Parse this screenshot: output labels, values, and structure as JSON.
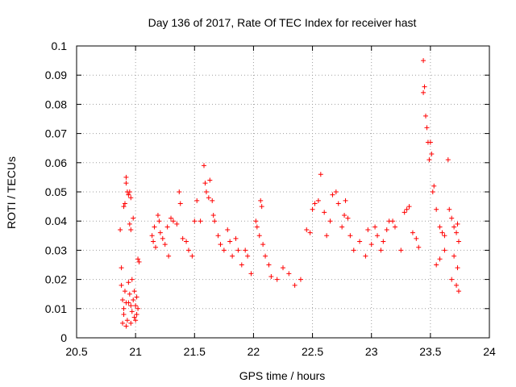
{
  "chart_data": {
    "type": "scatter",
    "title": "Day 136 of 2017, Rate Of TEC Index for receiver hast",
    "xlabel": "GPS time / hours",
    "ylabel": "ROTI / TECUs",
    "xlim": [
      20.5,
      24
    ],
    "ylim": [
      0,
      0.1
    ],
    "xticks": [
      "20.5",
      "21",
      "21.5",
      "22",
      "22.5",
      "23",
      "23.5",
      "24"
    ],
    "yticks": [
      "0",
      "0.01",
      "0.02",
      "0.03",
      "0.04",
      "0.05",
      "0.06",
      "0.07",
      "0.08",
      "0.09",
      "0.1"
    ],
    "grid": true,
    "marker": "+",
    "series": [
      {
        "color": "#ff0000",
        "points": [
          [
            20.87,
            0.037
          ],
          [
            20.88,
            0.024
          ],
          [
            20.9,
            0.045
          ],
          [
            20.91,
            0.046
          ],
          [
            20.92,
            0.055
          ],
          [
            20.92,
            0.053
          ],
          [
            20.93,
            0.05
          ],
          [
            20.94,
            0.049
          ],
          [
            20.95,
            0.05
          ],
          [
            20.96,
            0.048
          ],
          [
            20.95,
            0.039
          ],
          [
            20.96,
            0.037
          ],
          [
            20.98,
            0.041
          ],
          [
            21.02,
            0.027
          ],
          [
            21.03,
            0.026
          ],
          [
            20.88,
            0.018
          ],
          [
            20.89,
            0.013
          ],
          [
            20.9,
            0.01
          ],
          [
            20.9,
            0.008
          ],
          [
            20.91,
            0.016
          ],
          [
            20.92,
            0.012
          ],
          [
            20.93,
            0.006
          ],
          [
            20.94,
            0.019
          ],
          [
            20.95,
            0.015
          ],
          [
            20.96,
            0.011
          ],
          [
            20.97,
            0.009
          ],
          [
            20.97,
            0.02
          ],
          [
            20.98,
            0.013
          ],
          [
            20.99,
            0.007
          ],
          [
            21.0,
            0.011
          ],
          [
            21.01,
            0.014
          ],
          [
            21.01,
            0.008
          ],
          [
            21.02,
            0.01
          ],
          [
            20.89,
            0.005
          ],
          [
            20.92,
            0.004
          ],
          [
            20.96,
            0.005
          ],
          [
            21.0,
            0.006
          ],
          [
            20.94,
            0.012
          ],
          [
            20.99,
            0.016
          ],
          [
            21.14,
            0.035
          ],
          [
            21.15,
            0.033
          ],
          [
            21.16,
            0.038
          ],
          [
            21.17,
            0.031
          ],
          [
            21.19,
            0.042
          ],
          [
            21.2,
            0.04
          ],
          [
            21.21,
            0.036
          ],
          [
            21.23,
            0.034
          ],
          [
            21.25,
            0.032
          ],
          [
            21.27,
            0.038
          ],
          [
            21.28,
            0.028
          ],
          [
            21.3,
            0.041
          ],
          [
            21.32,
            0.04
          ],
          [
            21.35,
            0.039
          ],
          [
            21.37,
            0.05
          ],
          [
            21.38,
            0.046
          ],
          [
            21.4,
            0.034
          ],
          [
            21.43,
            0.033
          ],
          [
            21.45,
            0.03
          ],
          [
            21.48,
            0.028
          ],
          [
            21.5,
            0.04
          ],
          [
            21.52,
            0.047
          ],
          [
            21.55,
            0.04
          ],
          [
            21.58,
            0.059
          ],
          [
            21.59,
            0.053
          ],
          [
            21.6,
            0.05
          ],
          [
            21.62,
            0.048
          ],
          [
            21.63,
            0.054
          ],
          [
            21.65,
            0.047
          ],
          [
            21.66,
            0.042
          ],
          [
            21.67,
            0.04
          ],
          [
            21.7,
            0.035
          ],
          [
            21.72,
            0.032
          ],
          [
            21.75,
            0.03
          ],
          [
            21.78,
            0.037
          ],
          [
            21.8,
            0.033
          ],
          [
            21.82,
            0.028
          ],
          [
            21.85,
            0.034
          ],
          [
            21.87,
            0.03
          ],
          [
            21.9,
            0.025
          ],
          [
            21.93,
            0.03
          ],
          [
            21.95,
            0.028
          ],
          [
            21.98,
            0.022
          ],
          [
            22.02,
            0.04
          ],
          [
            22.03,
            0.038
          ],
          [
            22.05,
            0.035
          ],
          [
            22.06,
            0.047
          ],
          [
            22.07,
            0.045
          ],
          [
            22.08,
            0.032
          ],
          [
            22.1,
            0.028
          ],
          [
            22.13,
            0.025
          ],
          [
            22.15,
            0.021
          ],
          [
            22.2,
            0.02
          ],
          [
            22.25,
            0.024
          ],
          [
            22.3,
            0.022
          ],
          [
            22.35,
            0.018
          ],
          [
            22.4,
            0.02
          ],
          [
            22.45,
            0.037
          ],
          [
            22.48,
            0.036
          ],
          [
            22.5,
            0.044
          ],
          [
            22.52,
            0.046
          ],
          [
            22.55,
            0.047
          ],
          [
            22.57,
            0.056
          ],
          [
            22.6,
            0.043
          ],
          [
            22.62,
            0.035
          ],
          [
            22.65,
            0.04
          ],
          [
            22.67,
            0.049
          ],
          [
            22.7,
            0.05
          ],
          [
            22.72,
            0.046
          ],
          [
            22.75,
            0.038
          ],
          [
            22.77,
            0.042
          ],
          [
            22.78,
            0.047
          ],
          [
            22.8,
            0.041
          ],
          [
            22.82,
            0.035
          ],
          [
            22.85,
            0.03
          ],
          [
            22.9,
            0.033
          ],
          [
            22.95,
            0.028
          ],
          [
            22.97,
            0.037
          ],
          [
            23.0,
            0.032
          ],
          [
            23.03,
            0.038
          ],
          [
            23.05,
            0.035
          ],
          [
            23.08,
            0.03
          ],
          [
            23.1,
            0.033
          ],
          [
            23.13,
            0.037
          ],
          [
            23.15,
            0.04
          ],
          [
            23.18,
            0.04
          ],
          [
            23.2,
            0.038
          ],
          [
            23.25,
            0.03
          ],
          [
            23.28,
            0.043
          ],
          [
            23.3,
            0.044
          ],
          [
            23.32,
            0.045
          ],
          [
            23.35,
            0.036
          ],
          [
            23.38,
            0.034
          ],
          [
            23.4,
            0.031
          ],
          [
            23.44,
            0.095
          ],
          [
            23.45,
            0.086
          ],
          [
            23.44,
            0.084
          ],
          [
            23.46,
            0.076
          ],
          [
            23.47,
            0.072
          ],
          [
            23.48,
            0.067
          ],
          [
            23.49,
            0.061
          ],
          [
            23.5,
            0.067
          ],
          [
            23.51,
            0.063
          ],
          [
            23.52,
            0.05
          ],
          [
            23.53,
            0.052
          ],
          [
            23.55,
            0.044
          ],
          [
            23.58,
            0.038
          ],
          [
            23.6,
            0.036
          ],
          [
            23.62,
            0.035
          ],
          [
            23.65,
            0.061
          ],
          [
            23.66,
            0.044
          ],
          [
            23.68,
            0.041
          ],
          [
            23.7,
            0.038
          ],
          [
            23.72,
            0.036
          ],
          [
            23.73,
            0.039
          ],
          [
            23.74,
            0.033
          ],
          [
            23.62,
            0.03
          ],
          [
            23.58,
            0.027
          ],
          [
            23.55,
            0.025
          ],
          [
            23.7,
            0.028
          ],
          [
            23.73,
            0.024
          ],
          [
            23.68,
            0.02
          ],
          [
            23.72,
            0.018
          ],
          [
            23.74,
            0.016
          ]
        ]
      }
    ]
  }
}
